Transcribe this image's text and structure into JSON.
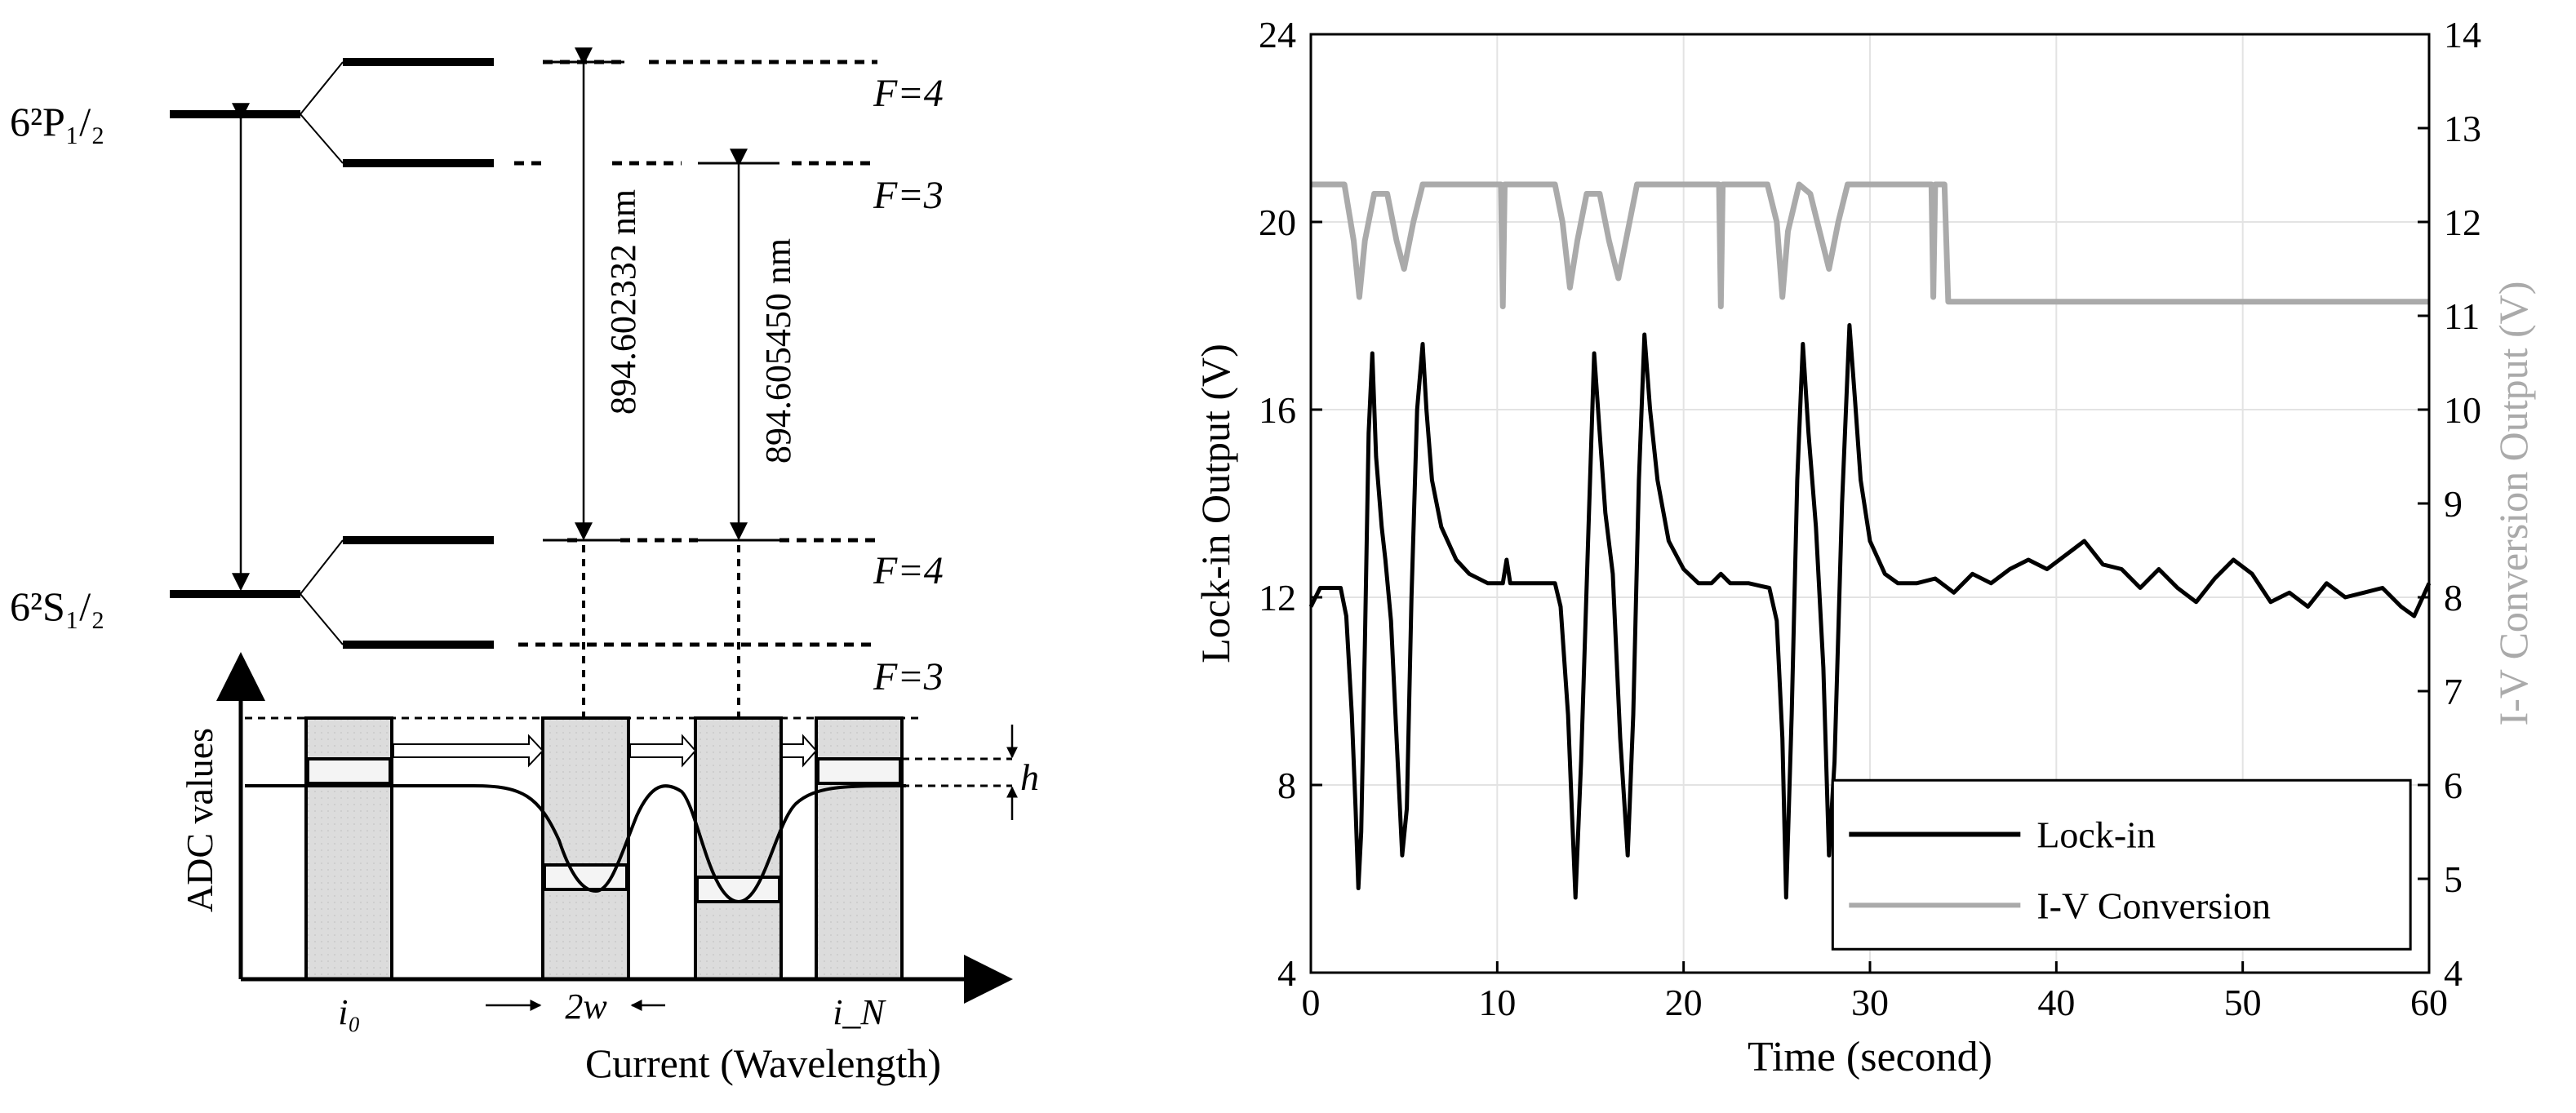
{
  "left": {
    "levels": {
      "p_state": "6²P₁/₂",
      "s_state": "6²S₁/₂",
      "hyperfine": [
        "F=4",
        "F=3",
        "F=4",
        "F=3"
      ]
    },
    "transitions": [
      "894.602332 nm",
      "894.605450 nm"
    ],
    "adc": {
      "ylabel": "ADC values",
      "xlabel": "Current (Wavelength)",
      "tick_start": "i₀",
      "tick_end": "i_N",
      "width_label": "2w",
      "height_label": "h"
    }
  },
  "chart_data": {
    "type": "line",
    "title": "",
    "xlabel": "Time (second)",
    "ylabel": "Lock-in Output (V)",
    "y2label": "I-V Conversion Output (V)",
    "xlim": [
      0,
      60
    ],
    "ylim": [
      4,
      24
    ],
    "y2lim": [
      4,
      14
    ],
    "xticks": [
      0,
      10,
      20,
      30,
      40,
      50,
      60
    ],
    "yticks": [
      4,
      8,
      12,
      16,
      20,
      24
    ],
    "y2ticks": [
      4,
      5,
      6,
      7,
      8,
      9,
      10,
      11,
      12,
      13,
      14
    ],
    "grid": true,
    "legend_position": "bottom-right",
    "series": [
      {
        "name": "Lock-in",
        "color": "#000000",
        "axis": "left",
        "x": [
          0,
          0.5,
          1.0,
          1.6,
          1.9,
          2.2,
          2.4,
          2.55,
          2.7,
          2.9,
          3.1,
          3.3,
          3.5,
          3.8,
          4.0,
          4.3,
          4.6,
          4.9,
          5.15,
          5.4,
          5.7,
          6.0,
          6.2,
          6.5,
          7.0,
          7.8,
          8.5,
          9.5,
          10.3,
          10.5,
          10.7,
          11.5,
          12.5,
          13.1,
          13.4,
          13.8,
          14.0,
          14.2,
          14.5,
          14.9,
          15.2,
          15.5,
          15.8,
          16.2,
          16.6,
          17.0,
          17.3,
          17.6,
          17.9,
          18.2,
          18.6,
          19.2,
          20.0,
          20.8,
          21.5,
          22.0,
          22.5,
          23.5,
          24.6,
          25.0,
          25.3,
          25.5,
          25.8,
          26.1,
          26.4,
          26.7,
          27.1,
          27.5,
          27.8,
          28.1,
          28.5,
          28.9,
          29.2,
          29.5,
          30.0,
          30.8,
          31.5,
          32.5,
          33.5,
          34.5,
          35.5,
          36.5,
          37.5,
          38.5,
          39.5,
          40.5,
          41.5,
          42.5,
          43.5,
          44.5,
          45.5,
          46.5,
          47.5,
          48.5,
          49.5,
          50.5,
          51.5,
          52.5,
          53.5,
          54.5,
          55.5,
          56.5,
          57.5,
          58.5,
          59.2,
          60
        ],
        "y": [
          11.8,
          12.2,
          12.2,
          12.2,
          11.6,
          9.5,
          7.5,
          5.8,
          7.0,
          11.0,
          15.5,
          17.2,
          15.0,
          13.5,
          12.8,
          11.5,
          9.0,
          6.5,
          7.5,
          12.0,
          16.0,
          17.4,
          16.0,
          14.5,
          13.5,
          12.8,
          12.5,
          12.3,
          12.3,
          12.8,
          12.3,
          12.3,
          12.3,
          12.3,
          11.8,
          9.5,
          7.5,
          5.6,
          8.5,
          13.5,
          17.2,
          15.5,
          13.8,
          12.5,
          9.0,
          6.5,
          9.5,
          14.5,
          17.6,
          16.0,
          14.5,
          13.2,
          12.6,
          12.3,
          12.3,
          12.5,
          12.3,
          12.3,
          12.2,
          11.5,
          9.0,
          5.6,
          9.5,
          14.5,
          17.4,
          15.5,
          13.5,
          10.5,
          6.5,
          8.5,
          14.0,
          17.8,
          16.2,
          14.5,
          13.2,
          12.5,
          12.3,
          12.3,
          12.4,
          12.1,
          12.5,
          12.3,
          12.6,
          12.8,
          12.6,
          12.9,
          13.2,
          12.7,
          12.6,
          12.2,
          12.6,
          12.2,
          11.9,
          12.4,
          12.8,
          12.5,
          11.9,
          12.1,
          11.8,
          12.3,
          12.0,
          12.1,
          12.2,
          11.8,
          11.6,
          12.3
        ]
      },
      {
        "name": "I-V Conversion",
        "color": "#aaaaaa",
        "axis": "right",
        "x": [
          0,
          1.8,
          2.3,
          2.6,
          2.9,
          3.4,
          4.1,
          4.6,
          5.0,
          5.5,
          6.0,
          10.2,
          10.3,
          10.4,
          10.5,
          10.6,
          13.1,
          13.5,
          13.9,
          14.3,
          14.8,
          15.5,
          16.0,
          16.5,
          17.0,
          17.5,
          18.0,
          21.9,
          22.0,
          22.1,
          22.2,
          24.5,
          25.0,
          25.3,
          25.6,
          26.2,
          26.8,
          27.3,
          27.8,
          28.3,
          28.8,
          33.3,
          33.4,
          33.5,
          33.6,
          34.0,
          34.2,
          60
        ],
        "y": [
          12.4,
          12.4,
          11.8,
          11.2,
          11.8,
          12.3,
          12.3,
          11.8,
          11.5,
          12.0,
          12.4,
          12.4,
          11.1,
          12.4,
          12.4,
          12.4,
          12.4,
          12.0,
          11.3,
          11.8,
          12.3,
          12.3,
          11.8,
          11.4,
          11.9,
          12.4,
          12.4,
          12.4,
          11.1,
          12.4,
          12.4,
          12.4,
          12.0,
          11.2,
          11.9,
          12.4,
          12.3,
          11.9,
          11.5,
          12.0,
          12.4,
          12.4,
          11.2,
          12.4,
          12.4,
          12.4,
          11.15,
          11.15
        ]
      }
    ]
  }
}
